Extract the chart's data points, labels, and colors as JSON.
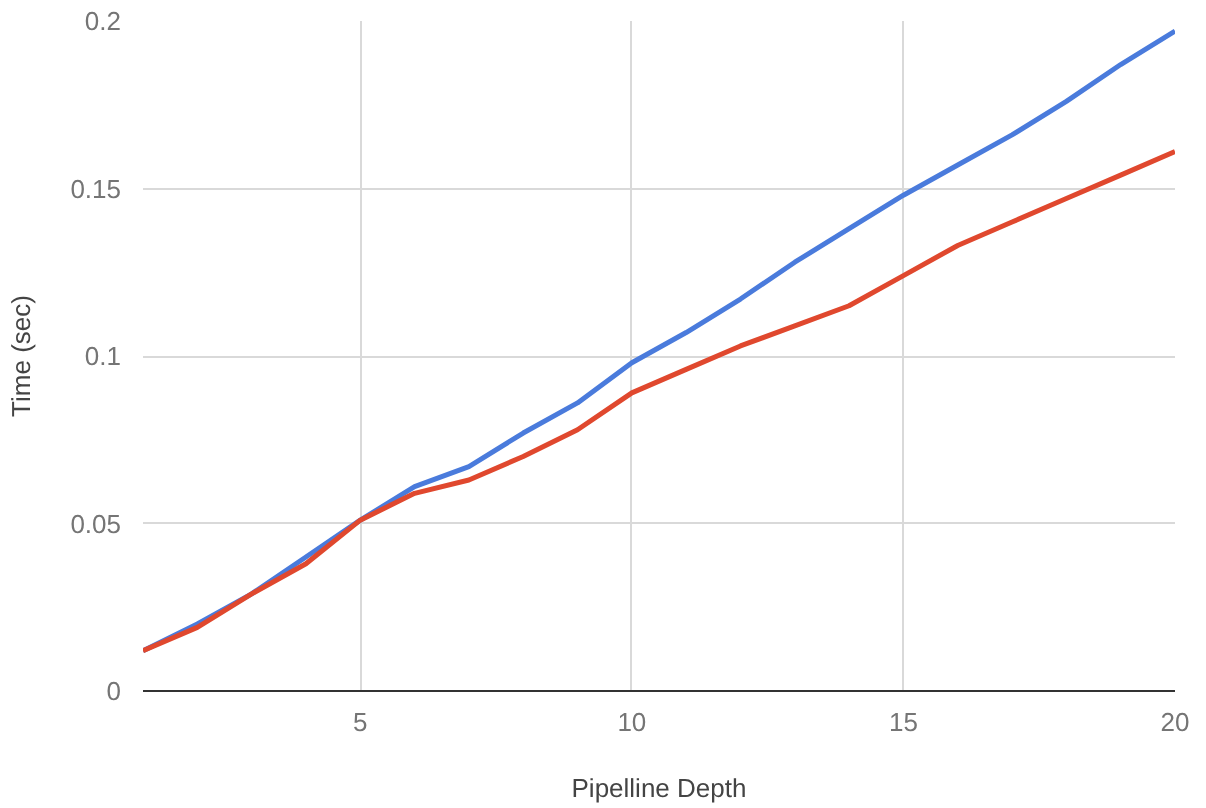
{
  "chart_data": {
    "type": "line",
    "xlabel": "Pipelline Depth",
    "ylabel": "Time (sec)",
    "x": [
      1,
      2,
      3,
      4,
      5,
      6,
      7,
      8,
      9,
      10,
      11,
      12,
      13,
      14,
      15,
      16,
      17,
      18,
      19,
      20
    ],
    "series": [
      {
        "color": "#4a7bdc",
        "values": [
          0.012,
          0.02,
          0.029,
          0.04,
          0.051,
          0.061,
          0.067,
          0.077,
          0.086,
          0.098,
          0.107,
          0.117,
          0.128,
          0.138,
          0.148,
          0.157,
          0.166,
          0.176,
          0.187,
          0.197
        ]
      },
      {
        "color": "#e0482e",
        "values": [
          0.012,
          0.019,
          0.029,
          0.038,
          0.051,
          0.059,
          0.063,
          0.07,
          0.078,
          0.089,
          0.096,
          0.103,
          0.109,
          0.115,
          0.124,
          0.133,
          0.14,
          0.147,
          0.154,
          0.161
        ]
      }
    ],
    "xlim": [
      1,
      20
    ],
    "xticks": [
      5,
      10,
      15,
      20
    ],
    "ylim": [
      0,
      0.2
    ],
    "yticks": [
      0,
      0.05,
      0.1,
      0.15,
      0.2
    ],
    "grid": true
  }
}
